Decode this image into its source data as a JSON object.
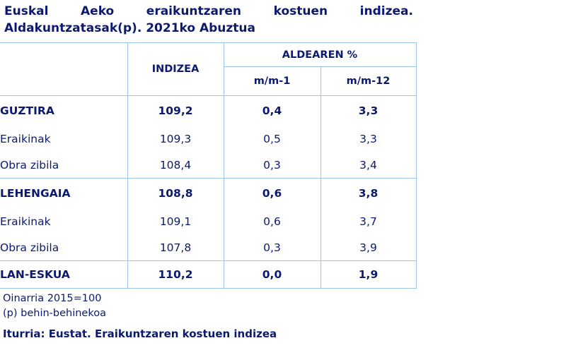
{
  "title": {
    "line1_words": [
      "Euskal",
      "Aeko",
      "eraikuntzaren",
      "kostuen",
      "indizea."
    ],
    "line2": "Aldakuntzatasak(p). 2021ko Abuztua"
  },
  "table": {
    "header": {
      "indizea": "INDIZEA",
      "aldearen": "ALDEAREN %",
      "mm1": "m/m-1",
      "mm12": "m/m-12"
    },
    "rows": [
      {
        "label": "GUZTIRA",
        "indizea": "109,2",
        "mm1": "0,4",
        "mm12": "3,3"
      },
      {
        "label": "Eraikinak",
        "indizea": "109,3",
        "mm1": "0,5",
        "mm12": "3,3"
      },
      {
        "label": "Obra zibila",
        "indizea": "108,4",
        "mm1": "0,3",
        "mm12": "3,4"
      },
      {
        "label": "LEHENGAIA",
        "indizea": "108,8",
        "mm1": "0,6",
        "mm12": "3,8"
      },
      {
        "label": "Eraikinak",
        "indizea": "109,1",
        "mm1": "0,6",
        "mm12": "3,7"
      },
      {
        "label": "Obra zibila",
        "indizea": "107,8",
        "mm1": "0,3",
        "mm12": "3,9"
      },
      {
        "label": "LAN-ESKUA",
        "indizea": "110,2",
        "mm1": "0,0",
        "mm12": "1,9"
      }
    ]
  },
  "notes": {
    "base": "Oinarria 2015=100",
    "provisional": "(p) behin-behinekoa"
  },
  "source": "Iturria: Eustat. Eraikuntzaren kostuen indizea",
  "colors": {
    "text": "#0b1a6e",
    "border": "#9dc3e6"
  }
}
